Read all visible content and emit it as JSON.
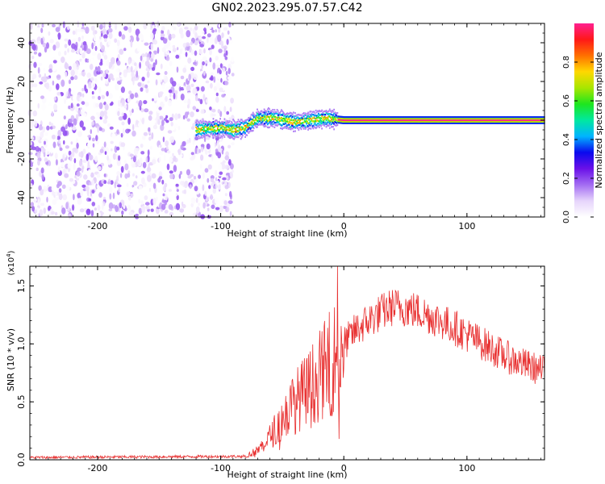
{
  "figure": {
    "title": "GN02.2023.295.07.57.C42"
  },
  "chart_data": [
    {
      "type": "heatmap",
      "xlabel": "Height of straight line (km)",
      "ylabel": "Frequency (Hz)",
      "xlim": [
        -255,
        163
      ],
      "ylim": [
        -50,
        50
      ],
      "xticks": [
        "-200",
        "-100",
        "0",
        "100"
      ],
      "yticks": [
        "40",
        "20",
        "0",
        "-20",
        "-40"
      ],
      "colorbar": {
        "label": "Normalized spectral amplitude",
        "range": [
          0,
          1
        ],
        "ticks": [
          "0.0",
          "0.2",
          "0.4",
          "0.6",
          "0.8"
        ],
        "colors": [
          "#ffffff",
          "#e6d4fb",
          "#a36cf2",
          "#6a10e8",
          "#0a0aee",
          "#00b4ff",
          "#00e8a0",
          "#1ee61e",
          "#a8e600",
          "#ffd800",
          "#ff7000",
          "#ff1818",
          "#ff2090"
        ]
      },
      "noise_region_x": [
        -255,
        -90
      ],
      "ridge": [
        {
          "x": -120,
          "f": -5
        },
        {
          "x": -100,
          "f": -4
        },
        {
          "x": -90,
          "f": -5
        },
        {
          "x": -80,
          "f": -4
        },
        {
          "x": -70,
          "f": 1
        },
        {
          "x": -55,
          "f": 1
        },
        {
          "x": -40,
          "f": -1
        },
        {
          "x": -25,
          "f": 0
        },
        {
          "x": -15,
          "f": 1
        },
        {
          "x": 0,
          "f": 0
        },
        {
          "x": 163,
          "f": 0
        }
      ],
      "grid": false
    },
    {
      "type": "line",
      "xlabel": "Height of straight line (km)",
      "ylabel": "SNR (10 * v/v)",
      "yscale_label": "(x10",
      "yscale_exponent": "4",
      "yscale_close": ")",
      "xlim": [
        -255,
        163
      ],
      "ylim": [
        0,
        1.67
      ],
      "xticks": [
        "-200",
        "-100",
        "0",
        "100"
      ],
      "yticks": [
        "0.0",
        "0.5",
        "1.0",
        "1.5"
      ],
      "color": "#e83030",
      "envelope": [
        {
          "x": -255,
          "y": 0.02
        },
        {
          "x": -80,
          "y": 0.03
        },
        {
          "x": -70,
          "y": 0.08
        },
        {
          "x": -60,
          "y": 0.2
        },
        {
          "x": -50,
          "y": 0.35
        },
        {
          "x": -40,
          "y": 0.5
        },
        {
          "x": -30,
          "y": 0.6
        },
        {
          "x": -20,
          "y": 0.72
        },
        {
          "x": -10,
          "y": 0.85
        },
        {
          "x": 0,
          "y": 1.0
        },
        {
          "x": 10,
          "y": 1.12
        },
        {
          "x": 20,
          "y": 1.2
        },
        {
          "x": 30,
          "y": 1.27
        },
        {
          "x": 40,
          "y": 1.32
        },
        {
          "x": 50,
          "y": 1.31
        },
        {
          "x": 60,
          "y": 1.28
        },
        {
          "x": 70,
          "y": 1.24
        },
        {
          "x": 80,
          "y": 1.19
        },
        {
          "x": 90,
          "y": 1.14
        },
        {
          "x": 100,
          "y": 1.08
        },
        {
          "x": 110,
          "y": 1.02
        },
        {
          "x": 120,
          "y": 0.96
        },
        {
          "x": 130,
          "y": 0.9
        },
        {
          "x": 140,
          "y": 0.85
        },
        {
          "x": 150,
          "y": 0.81
        },
        {
          "x": 163,
          "y": 0.76
        }
      ],
      "spikes": [
        {
          "x": -5,
          "y": 1.67
        },
        {
          "x": -8,
          "y": 0.92
        },
        {
          "x": -4,
          "y": 0.18
        }
      ],
      "grid": false
    }
  ]
}
